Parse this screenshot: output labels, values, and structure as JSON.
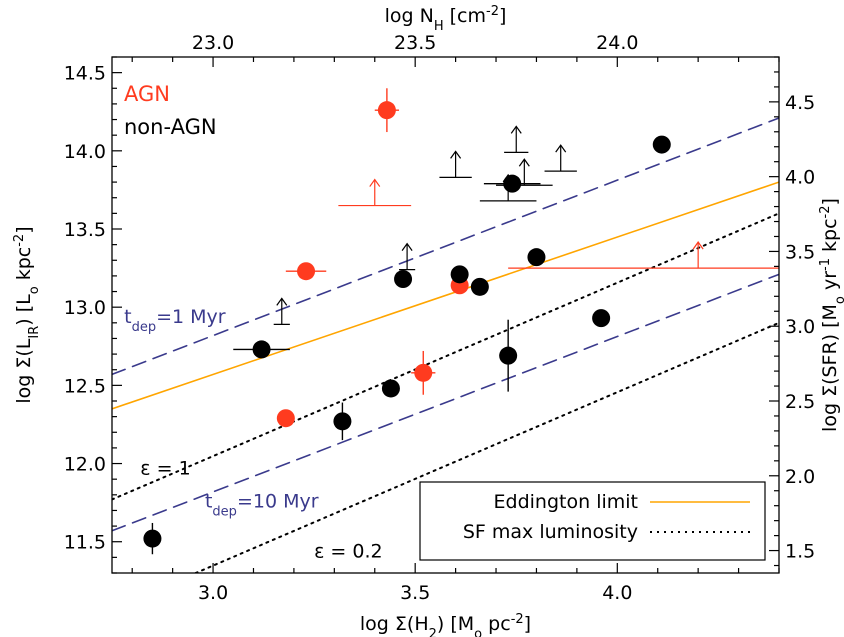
{
  "chart_data": {
    "type": "scatter",
    "xlabel": "log Σ(H₂) [Mₒ pc⁻²]",
    "ylabel": "log Σ(L_IR) [Lₒ kpc⁻²]",
    "top_xlabel": "log N_H [cm⁻²]",
    "right_ylabel": "log Σ(SFR) [Mₒ yr⁻¹ kpc⁻²]",
    "xlim": [
      2.75,
      4.4
    ],
    "ylim": [
      11.3,
      14.6
    ],
    "top_xlim": [
      22.75,
      24.4
    ],
    "right_ylim": [
      1.35,
      4.8
    ],
    "x_ticks": [
      3.0,
      3.5,
      4.0
    ],
    "x_tick_labels": [
      "3.0",
      "3.5",
      "4.0"
    ],
    "y_ticks": [
      11.5,
      12.0,
      12.5,
      13.0,
      13.5,
      14.0,
      14.5
    ],
    "y_tick_labels": [
      "11.5",
      "12.0",
      "12.5",
      "13.0",
      "13.5",
      "14.0",
      "14.5"
    ],
    "top_ticks": [
      23.0,
      23.5,
      24.0
    ],
    "top_tick_labels": [
      "23.0",
      "23.5",
      "24.0"
    ],
    "right_ticks": [
      1.5,
      2.0,
      2.5,
      3.0,
      3.5,
      4.0,
      4.5
    ],
    "right_tick_labels": [
      "1.5",
      "2.0",
      "2.5",
      "3.0",
      "3.5",
      "4.0",
      "4.5"
    ],
    "group_labels": [
      {
        "text": "AGN",
        "color": "#ff3b1f"
      },
      {
        "text": "non-AGN",
        "color": "#000000"
      }
    ],
    "series": [
      {
        "name": "AGN",
        "color": "#ff3b1f",
        "points": [
          {
            "x": 3.43,
            "y": 14.26,
            "xerr": 0.03,
            "yerr": 0.14
          },
          {
            "x": 3.23,
            "y": 13.23,
            "xerr": 0.05,
            "yerr": 0.05
          },
          {
            "x": 3.18,
            "y": 12.29,
            "xerr": 0.02,
            "yerr": 0.03
          },
          {
            "x": 3.52,
            "y": 12.58,
            "xerr": 0.03,
            "yerr": 0.14
          },
          {
            "x": 3.61,
            "y": 13.14,
            "xerr": 0.01,
            "yerr": 0.02
          }
        ],
        "lower_limits": [
          {
            "x": 3.4,
            "y": 13.65,
            "xerr": 0.09
          },
          {
            "x": 4.2,
            "y": 13.25,
            "xmin": 3.73,
            "xmax": 4.4
          }
        ]
      },
      {
        "name": "non-AGN",
        "color": "#000000",
        "points": [
          {
            "x": 2.85,
            "y": 11.52,
            "xerr": 0.0,
            "yerr": 0.1
          },
          {
            "x": 3.12,
            "y": 12.73,
            "xerr": 0.07,
            "yerr": 0.0
          },
          {
            "x": 3.32,
            "y": 12.27,
            "xerr": 0.0,
            "yerr": 0.12
          },
          {
            "x": 3.44,
            "y": 12.48,
            "xerr": 0.0,
            "yerr": 0.05
          },
          {
            "x": 3.47,
            "y": 13.18,
            "xerr": 0.02,
            "yerr": 0.03
          },
          {
            "x": 3.61,
            "y": 13.21,
            "xerr": 0.02,
            "yerr": 0.02
          },
          {
            "x": 3.66,
            "y": 13.13,
            "xerr": 0.02,
            "yerr": 0.0
          },
          {
            "x": 3.73,
            "y": 12.69,
            "xerr": 0.0,
            "yerr": 0.23
          },
          {
            "x": 3.74,
            "y": 13.79,
            "xerr": 0.07,
            "yerr": 0.04
          },
          {
            "x": 3.8,
            "y": 13.32,
            "xerr": 0.0,
            "yerr": 0.02
          },
          {
            "x": 3.96,
            "y": 12.93,
            "xerr": 0.0,
            "yerr": 0.0
          },
          {
            "x": 4.11,
            "y": 14.04,
            "xerr": 0.0,
            "yerr": 0.05
          }
        ],
        "lower_limits": [
          {
            "x": 3.17,
            "y": 12.89,
            "xerr": 0.02
          },
          {
            "x": 3.48,
            "y": 13.24,
            "xerr": 0.02
          },
          {
            "x": 3.6,
            "y": 13.83,
            "xerr": 0.04
          },
          {
            "x": 3.73,
            "y": 13.68,
            "xerr": 0.07
          },
          {
            "x": 3.75,
            "y": 13.99,
            "xerr": 0.03
          },
          {
            "x": 3.77,
            "y": 13.78,
            "xerr": 0.07
          },
          {
            "x": 3.86,
            "y": 13.87,
            "xerr": 0.04
          }
        ]
      }
    ],
    "lines": [
      {
        "name": "Eddington limit",
        "style": "solid",
        "color": "#ffa500",
        "x": [
          2.75,
          4.4
        ],
        "y": [
          12.35,
          13.8
        ]
      },
      {
        "name": "t_dep=1 Myr",
        "style": "dashed",
        "color": "#3a3a8c",
        "x": [
          2.75,
          4.4
        ],
        "y": [
          12.57,
          14.21
        ]
      },
      {
        "name": "t_dep=10 Myr",
        "style": "dashed",
        "color": "#3a3a8c",
        "x": [
          2.75,
          4.4
        ],
        "y": [
          11.57,
          13.21
        ]
      },
      {
        "name": "SF max luminosity ε=1",
        "style": "dotted",
        "color": "#000000",
        "x": [
          2.75,
          4.4
        ],
        "y": [
          11.77,
          13.6
        ]
      },
      {
        "name": "SF max luminosity ε=0.2",
        "style": "dotted",
        "color": "#000000",
        "x": [
          2.75,
          4.4
        ],
        "y": [
          11.07,
          12.9
        ]
      }
    ],
    "annotations": [
      {
        "text": "t",
        "sub": "dep",
        "rest": "=1 Myr",
        "x": 2.78,
        "y": 12.9,
        "color": "#3a3a8c"
      },
      {
        "text": "t",
        "sub": "dep",
        "rest": "=10 Myr",
        "x": 2.98,
        "y": 11.72,
        "color": "#3a3a8c"
      },
      {
        "text": "ε = 1",
        "x": 2.82,
        "y": 11.93,
        "color": "#000000"
      },
      {
        "text": "ε = 0.2",
        "x": 3.25,
        "y": 11.4,
        "color": "#000000"
      }
    ],
    "legend": {
      "position": "bottom-right",
      "entries": [
        {
          "label": "Eddington limit",
          "style": "solid",
          "color": "#ffa500"
        },
        {
          "label": "SF max luminosity",
          "style": "dotted",
          "color": "#000000"
        }
      ]
    }
  }
}
